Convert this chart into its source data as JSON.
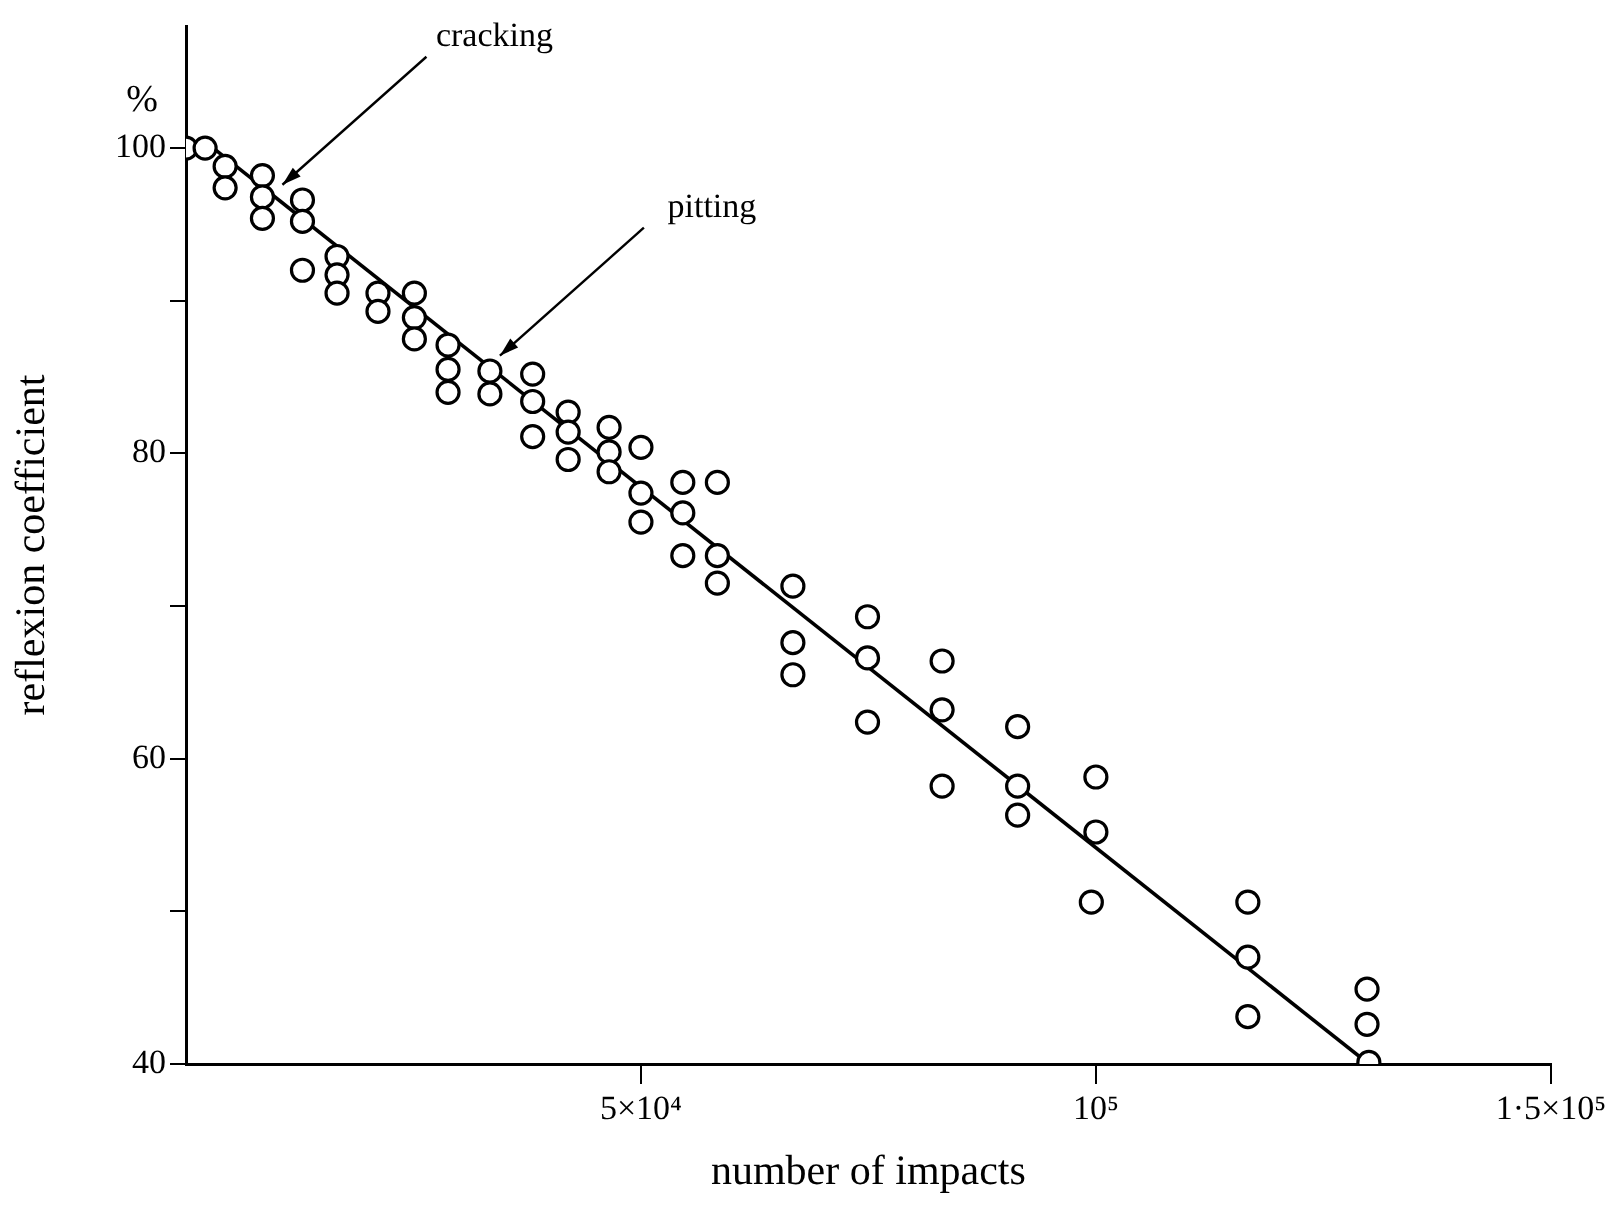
{
  "chart_data": {
    "type": "scatter",
    "xlabel": "number of impacts",
    "ylabel": "reflexion coefficient",
    "annotations": [
      "%",
      {
        "text": "cracking",
        "x": 10600,
        "y": 97.6
      },
      {
        "text": "pitting",
        "x": 34500,
        "y": 86.4
      }
    ],
    "xlim": [
      0,
      150000
    ],
    "ylim": [
      40,
      108
    ],
    "xticks": [
      {
        "value": 50000,
        "label": "5×10⁴"
      },
      {
        "value": 100000,
        "label": "10⁵"
      },
      {
        "value": 150000,
        "label": "1·5×10⁵"
      }
    ],
    "yticks": [
      40,
      {
        "value": 50,
        "label": null
      },
      60,
      {
        "value": 70,
        "label": null
      },
      80,
      {
        "value": 90,
        "label": null
      },
      100
    ],
    "grid": false,
    "legend": false,
    "series": [
      {
        "type": "scatter",
        "color": "#000000",
        "marker": "circle",
        "x": [
          0,
          2100,
          4300,
          4300,
          8400,
          8400,
          8400,
          12800,
          12800,
          12800,
          16600,
          16600,
          16600,
          21100,
          21100,
          25100,
          25100,
          25100,
          28800,
          28800,
          28800,
          33400,
          33400,
          38100,
          38100,
          38100,
          42000,
          42000,
          42000,
          46500,
          46500,
          46500,
          50000,
          50000,
          50000,
          54600,
          54600,
          54600,
          58400,
          58400,
          58400,
          66700,
          66700,
          66700,
          74900,
          74900,
          74900,
          83100,
          83100,
          83100,
          91400,
          91400,
          91400,
          100000,
          100000,
          99500,
          116700,
          116700,
          116700,
          129800,
          129800,
          130000
        ],
        "values": [
          100,
          100,
          98.8,
          97.4,
          98.2,
          96.8,
          95.4,
          96.6,
          95.2,
          92,
          92.9,
          91.7,
          90.5,
          90.5,
          89.3,
          90.5,
          88.9,
          87.5,
          87.1,
          85.5,
          84,
          85.4,
          83.9,
          85.2,
          83.4,
          81.1,
          82.7,
          81.4,
          79.6,
          81.7,
          80.1,
          78.8,
          80.4,
          77.4,
          75.5,
          78.1,
          76.1,
          73.3,
          78.1,
          73.3,
          71.5,
          71.3,
          67.6,
          65.5,
          69.3,
          66.6,
          62.4,
          66.4,
          63.2,
          58.2,
          62.1,
          58.2,
          56.3,
          58.8,
          55.2,
          50.6,
          50.6,
          47,
          43.1,
          44.9,
          42.6,
          40.1
        ]
      },
      {
        "type": "line",
        "color": "#000000",
        "marker": "none",
        "x": [
          3000,
          130000
        ],
        "values": [
          100,
          40
        ]
      }
    ]
  }
}
